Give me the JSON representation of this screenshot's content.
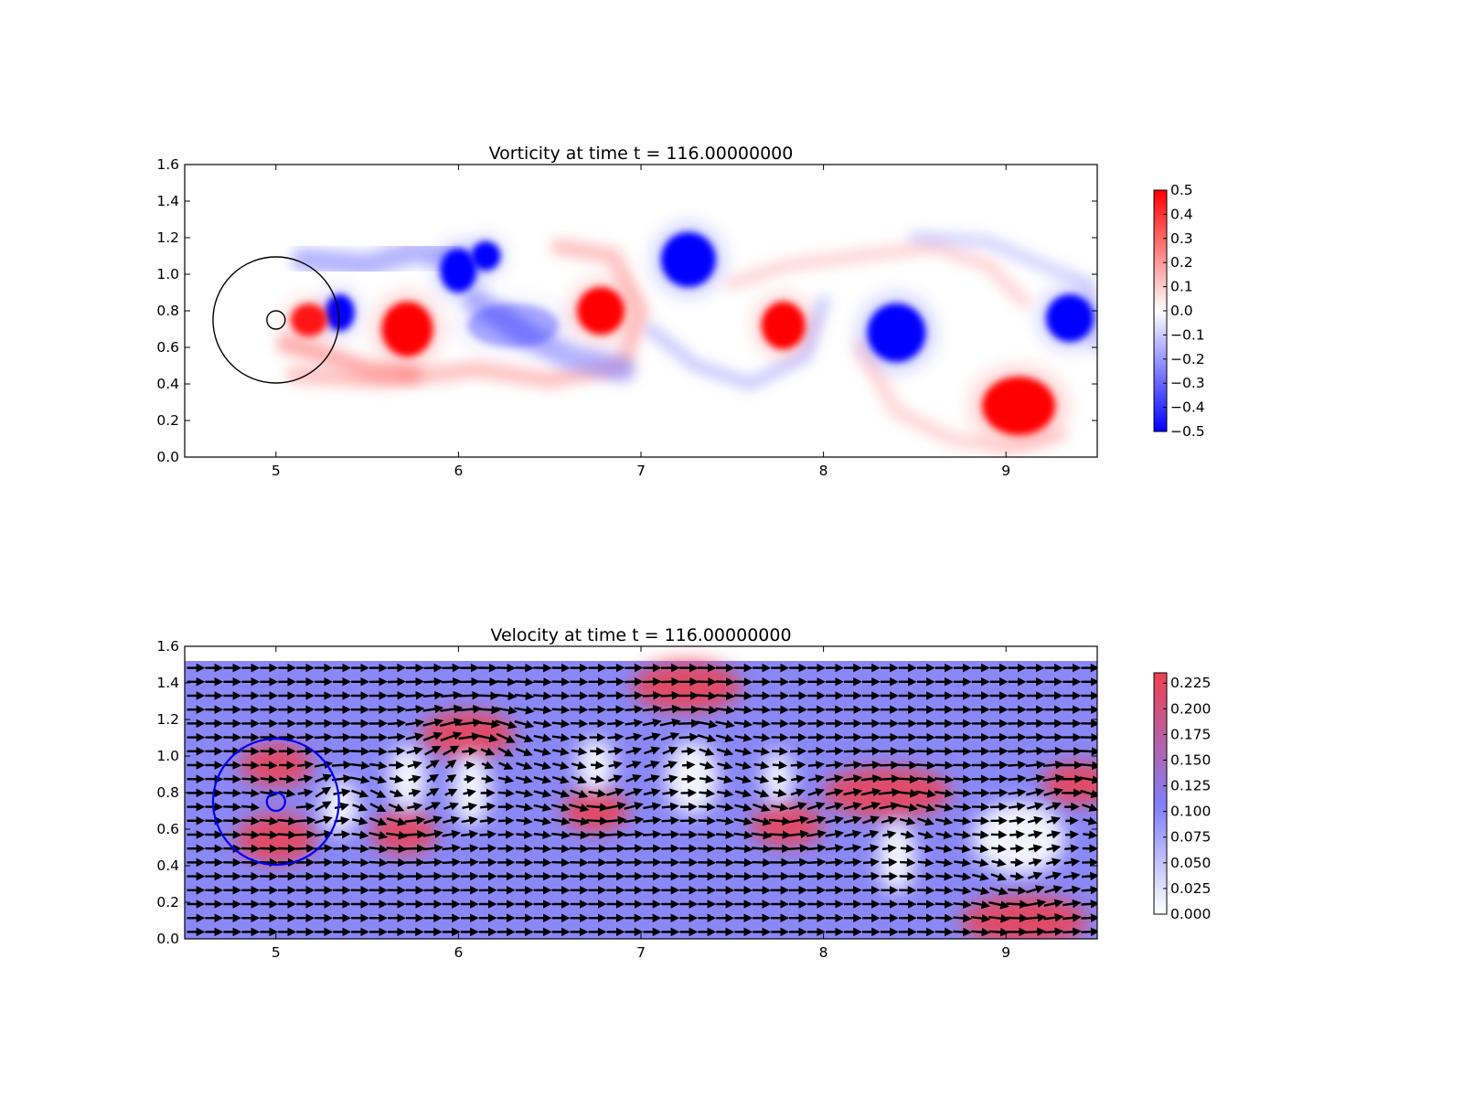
{
  "chart_data": [
    {
      "type": "heatmap",
      "title": "Vorticity at time t =   116.00000000",
      "xlim": [
        4.5,
        9.5
      ],
      "ylim": [
        0.0,
        1.6
      ],
      "xticks": [
        "5",
        "6",
        "7",
        "8",
        "9"
      ],
      "yticks": [
        "0.0",
        "0.2",
        "0.4",
        "0.6",
        "0.8",
        "1.0",
        "1.2",
        "1.4",
        "1.6"
      ],
      "colorbar": {
        "min": -0.5,
        "max": 0.5,
        "ticks": [
          "0.5",
          "0.4",
          "0.3",
          "0.2",
          "0.1",
          "0.0",
          "−0.1",
          "−0.2",
          "−0.3",
          "−0.4",
          "−0.5"
        ],
        "colors": {
          "low": "#0000ff",
          "mid": "#ffffff",
          "high": "#ff0000"
        }
      },
      "circles": [
        {
          "cx": 5.0,
          "cy": 0.75,
          "r": 0.345,
          "color": "#000000"
        },
        {
          "cx": 5.0,
          "cy": 0.75,
          "r": 0.05,
          "color": "#000000"
        }
      ],
      "vortices": [
        {
          "x": 5.35,
          "y": 0.79,
          "strength": -0.5,
          "rx": 0.08,
          "ry": 0.1
        },
        {
          "x": 5.18,
          "y": 0.75,
          "strength": 0.45,
          "rx": 0.1,
          "ry": 0.09
        },
        {
          "x": 5.72,
          "y": 0.7,
          "strength": 0.5,
          "rx": 0.14,
          "ry": 0.15
        },
        {
          "x": 6.0,
          "y": 1.02,
          "strength": -0.5,
          "rx": 0.1,
          "ry": 0.12
        },
        {
          "x": 6.15,
          "y": 1.1,
          "strength": -0.5,
          "rx": 0.08,
          "ry": 0.08
        },
        {
          "x": 6.3,
          "y": 0.72,
          "strength": -0.15,
          "rx": 0.25,
          "ry": 0.12
        },
        {
          "x": 6.78,
          "y": 0.8,
          "strength": 0.5,
          "rx": 0.13,
          "ry": 0.13
        },
        {
          "x": 7.26,
          "y": 1.08,
          "strength": -0.5,
          "rx": 0.15,
          "ry": 0.15
        },
        {
          "x": 7.78,
          "y": 0.72,
          "strength": 0.5,
          "rx": 0.12,
          "ry": 0.13
        },
        {
          "x": 8.4,
          "y": 0.68,
          "strength": -0.5,
          "rx": 0.16,
          "ry": 0.16
        },
        {
          "x": 9.07,
          "y": 0.28,
          "strength": 0.5,
          "rx": 0.2,
          "ry": 0.16
        },
        {
          "x": 9.35,
          "y": 0.76,
          "strength": -0.5,
          "rx": 0.13,
          "ry": 0.13
        }
      ]
    },
    {
      "type": "heatmap",
      "title": "Velocity at time t =   116.00000000",
      "xlim": [
        4.5,
        9.5
      ],
      "ylim": [
        0.0,
        1.6
      ],
      "data_ylim": [
        0.0,
        1.52
      ],
      "xticks": [
        "5",
        "6",
        "7",
        "8",
        "9"
      ],
      "yticks": [
        "0.0",
        "0.2",
        "0.4",
        "0.6",
        "0.8",
        "1.0",
        "1.2",
        "1.4",
        "1.6"
      ],
      "colorbar": {
        "min": 0.0,
        "max": 0.235,
        "ticks": [
          "0.225",
          "0.200",
          "0.175",
          "0.150",
          "0.125",
          "0.100",
          "0.075",
          "0.050",
          "0.025",
          "0.000"
        ],
        "tick_values": [
          0.225,
          0.2,
          0.175,
          0.15,
          0.125,
          0.1,
          0.075,
          0.05,
          0.025,
          0.0
        ],
        "colors": {
          "low": "#ffffff",
          "mid": "#8080f8",
          "high": "#f04050"
        }
      },
      "background_speed": 0.1,
      "circles": [
        {
          "cx": 5.0,
          "cy": 0.75,
          "r": 0.345,
          "color": "#0000ee"
        },
        {
          "cx": 5.0,
          "cy": 0.75,
          "r": 0.05,
          "color": "#0000ee"
        }
      ],
      "fast_regions": [
        {
          "x": 5.0,
          "y": 0.55,
          "rx": 0.22,
          "ry": 0.14
        },
        {
          "x": 5.0,
          "y": 0.95,
          "rx": 0.2,
          "ry": 0.12
        },
        {
          "x": 5.7,
          "y": 0.58,
          "rx": 0.18,
          "ry": 0.12
        },
        {
          "x": 6.05,
          "y": 1.12,
          "rx": 0.26,
          "ry": 0.13
        },
        {
          "x": 6.75,
          "y": 0.7,
          "rx": 0.18,
          "ry": 0.12
        },
        {
          "x": 7.25,
          "y": 1.38,
          "rx": 0.3,
          "ry": 0.14
        },
        {
          "x": 7.8,
          "y": 0.62,
          "rx": 0.2,
          "ry": 0.12
        },
        {
          "x": 8.35,
          "y": 0.8,
          "rx": 0.35,
          "ry": 0.14
        },
        {
          "x": 9.1,
          "y": 0.1,
          "rx": 0.35,
          "ry": 0.14
        },
        {
          "x": 9.4,
          "y": 0.85,
          "rx": 0.2,
          "ry": 0.12
        }
      ],
      "slow_regions": [
        {
          "x": 5.35,
          "y": 0.72,
          "rx": 0.1,
          "ry": 0.15
        },
        {
          "x": 5.72,
          "y": 0.88,
          "rx": 0.1,
          "ry": 0.18
        },
        {
          "x": 6.07,
          "y": 0.82,
          "rx": 0.1,
          "ry": 0.2
        },
        {
          "x": 6.75,
          "y": 0.95,
          "rx": 0.1,
          "ry": 0.15
        },
        {
          "x": 7.28,
          "y": 0.88,
          "rx": 0.14,
          "ry": 0.2
        },
        {
          "x": 7.75,
          "y": 0.88,
          "rx": 0.08,
          "ry": 0.15
        },
        {
          "x": 8.4,
          "y": 0.45,
          "rx": 0.1,
          "ry": 0.2
        },
        {
          "x": 9.07,
          "y": 0.55,
          "rx": 0.25,
          "ry": 0.2
        }
      ]
    }
  ]
}
